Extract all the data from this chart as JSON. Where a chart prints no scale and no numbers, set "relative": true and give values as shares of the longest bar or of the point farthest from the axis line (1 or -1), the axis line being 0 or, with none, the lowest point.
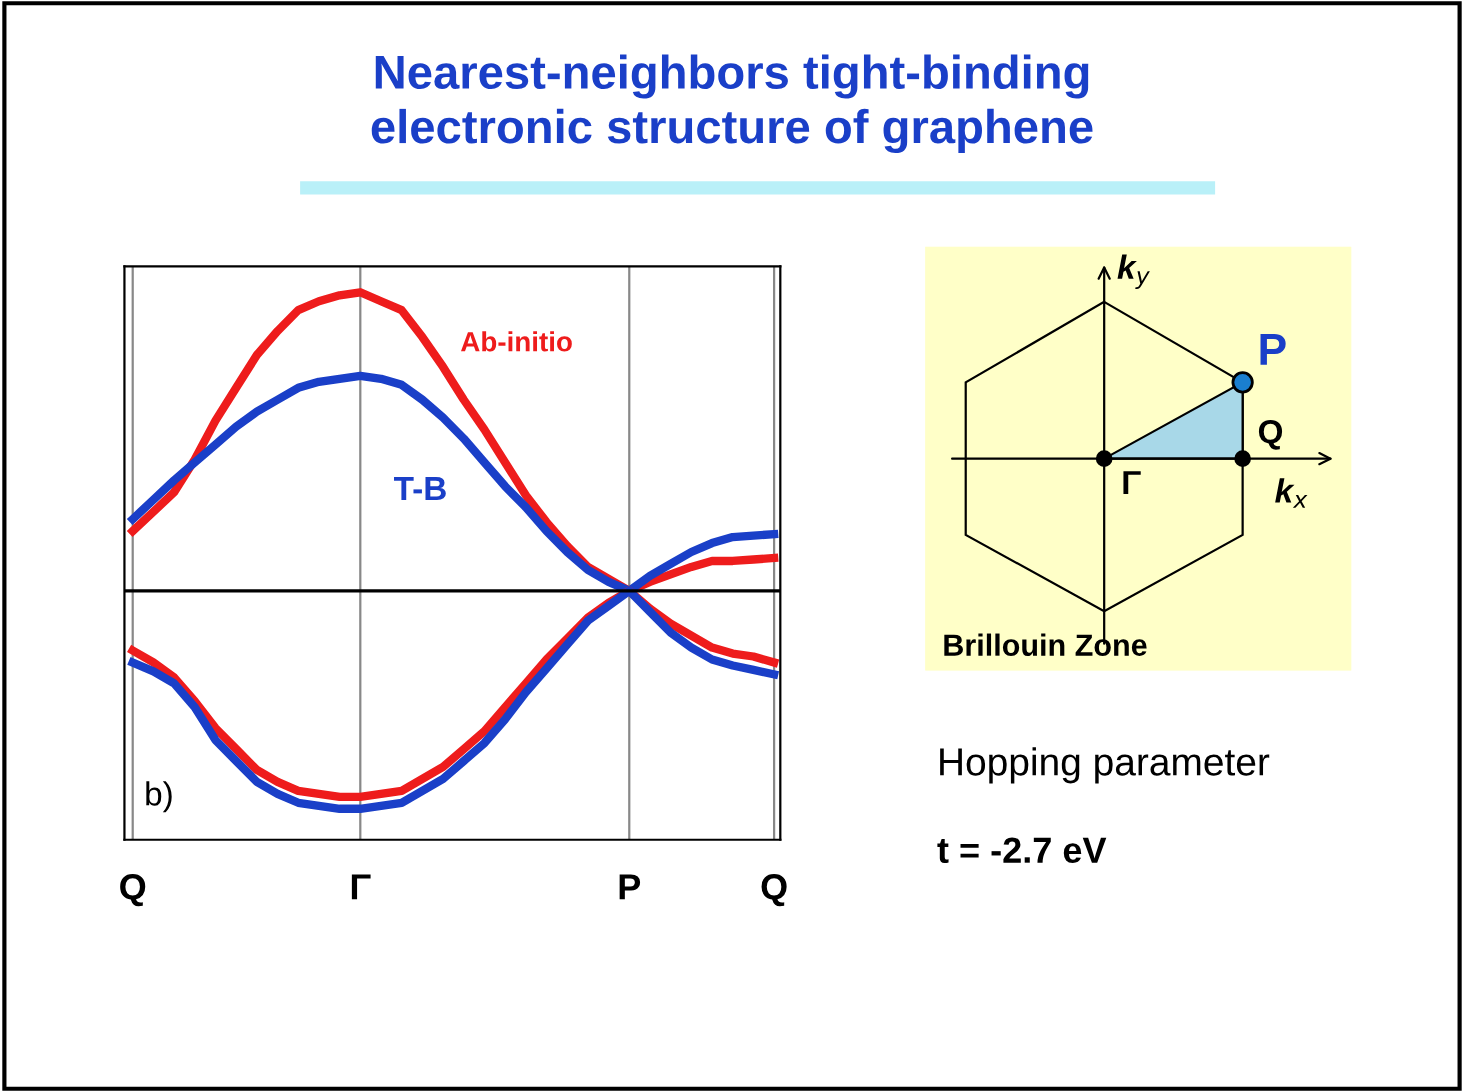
{
  "chart_data": [
    {
      "type": "line",
      "title": "Nearest-neighbors tight-binding\nelectronic structure of graphene",
      "relative": true,
      "categories": [
        "Q",
        null,
        null,
        null,
        null,
        null,
        null,
        null,
        null,
        null,
        null,
        "Γ",
        null,
        null,
        null,
        null,
        null,
        null,
        null,
        null,
        null,
        null,
        null,
        null,
        "P",
        null,
        null,
        null,
        null,
        null,
        null,
        "Q"
      ],
      "grid": "x",
      "tick_labels": "x",
      "marker": "none",
      "line_style": "solid",
      "ref_lines": [
        {
          "axis": "y",
          "value": 0,
          "color": "#000000"
        }
      ],
      "annotations": [
        "b)"
      ],
      "series": [
        {
          "name": "Ab-initio",
          "color": "#ee1c1c",
          "values": [
            0.2,
            0.265,
            0.33,
            0.44,
            0.57,
            0.68,
            0.79,
            0.87,
            0.94,
            0.97,
            0.99,
            1.0,
            0.97,
            0.94,
            0.85,
            0.75,
            0.64,
            0.54,
            0.43,
            0.32,
            0.23,
            0.15,
            0.08,
            0.04,
            0,
            0.03,
            0.055,
            0.08,
            0.1,
            0.1,
            0.105,
            0.11
          ]
        },
        {
          "name": "T-B",
          "color": "#1a3fc8",
          "values": [
            0.24,
            0.305,
            0.37,
            0.43,
            0.49,
            0.55,
            0.6,
            0.64,
            0.68,
            0.7,
            0.71,
            0.72,
            0.71,
            0.69,
            0.64,
            0.58,
            0.51,
            0.43,
            0.35,
            0.28,
            0.2,
            0.13,
            0.07,
            0.03,
            0,
            0.05,
            0.09,
            0.13,
            0.16,
            0.18,
            0.185,
            0.19
          ]
        },
        {
          "color": "#ee1c1c",
          "values": [
            -0.2,
            -0.24,
            -0.29,
            -0.37,
            -0.46,
            -0.53,
            -0.6,
            -0.64,
            -0.67,
            -0.68,
            -0.69,
            -0.69,
            -0.68,
            -0.67,
            -0.63,
            -0.59,
            -0.53,
            -0.47,
            -0.39,
            -0.31,
            -0.23,
            -0.16,
            -0.09,
            -0.04,
            0,
            -0.06,
            -0.11,
            -0.15,
            -0.19,
            -0.21,
            -0.22,
            -0.24
          ]
        },
        {
          "color": "#1a3fc8",
          "values": [
            -0.24,
            -0.27,
            -0.31,
            -0.39,
            -0.5,
            -0.57,
            -0.64,
            -0.68,
            -0.71,
            -0.72,
            -0.73,
            -0.73,
            -0.72,
            -0.71,
            -0.67,
            -0.63,
            -0.57,
            -0.51,
            -0.43,
            -0.34,
            -0.26,
            -0.18,
            -0.1,
            -0.05,
            0,
            -0.07,
            -0.14,
            -0.19,
            -0.23,
            -0.25,
            -0.265,
            -0.28
          ]
        }
      ]
    },
    {
      "type": "other",
      "annotations": [
        "k$_{y}$",
        "P",
        "Q",
        "Γ",
        "k$_{x}$",
        "Brillouin Zone",
        "Hopping parameter",
        "t = -2.7 eV"
      ]
    }
  ]
}
